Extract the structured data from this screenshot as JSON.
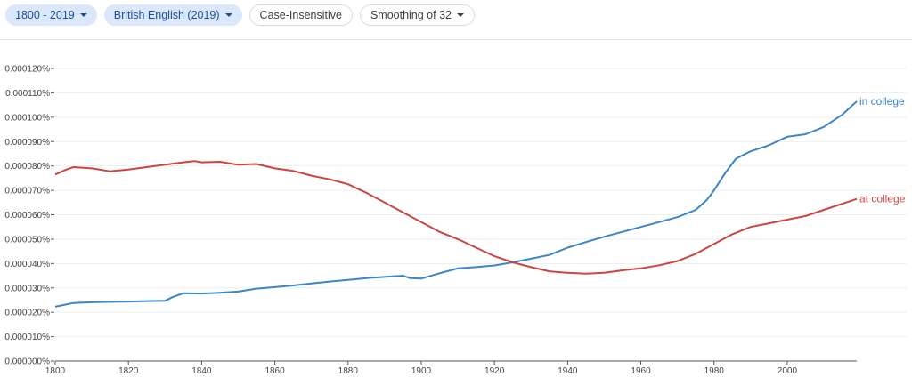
{
  "toolbar": {
    "year_range": "1800 - 2019",
    "corpus": "British English (2019)",
    "case": "Case-Insensitive",
    "smoothing": "Smoothing of 32"
  },
  "colors": {
    "series_1": "#3d85c6",
    "series_2": "#cc4444",
    "grid": "#eeeeee",
    "axis": "#555555"
  },
  "chart_data": {
    "type": "line",
    "xlim": [
      1800,
      2019
    ],
    "ylim": [
      0,
      0.00012
    ],
    "grid": true,
    "legend": "inline-right",
    "x_ticks": [
      "1800",
      "1820",
      "1840",
      "1860",
      "1880",
      "1900",
      "1920",
      "1940",
      "1960",
      "1980",
      "2000"
    ],
    "y_ticks": [
      "0.000000%",
      "0.000010%",
      "0.000020%",
      "0.000030%",
      "0.000040%",
      "0.000050%",
      "0.000060%",
      "0.000070%",
      "0.000080%",
      "0.000090%",
      "0.000100%",
      "0.000110%",
      "0.000120%"
    ],
    "series": [
      {
        "name": "in college",
        "color": "#3d85c6",
        "x": [
          1800,
          1805,
          1810,
          1815,
          1820,
          1825,
          1830,
          1832,
          1835,
          1840,
          1845,
          1850,
          1855,
          1860,
          1865,
          1870,
          1875,
          1880,
          1885,
          1890,
          1895,
          1897,
          1900,
          1905,
          1910,
          1915,
          1920,
          1925,
          1930,
          1935,
          1940,
          1945,
          1950,
          1955,
          1960,
          1965,
          1970,
          1975,
          1978,
          1980,
          1983,
          1986,
          1990,
          1995,
          2000,
          2005,
          2010,
          2015,
          2019
        ],
        "y": [
          2.23e-05,
          2.38e-05,
          2.41e-05,
          2.43e-05,
          2.44e-05,
          2.46e-05,
          2.47e-05,
          2.62e-05,
          2.78e-05,
          2.77e-05,
          2.8e-05,
          2.85e-05,
          2.97e-05,
          3.03e-05,
          3.1e-05,
          3.18e-05,
          3.26e-05,
          3.33e-05,
          3.4e-05,
          3.45e-05,
          3.5e-05,
          3.4e-05,
          3.38e-05,
          3.6e-05,
          3.8e-05,
          3.85e-05,
          3.92e-05,
          4.05e-05,
          4.2e-05,
          4.35e-05,
          4.65e-05,
          4.88e-05,
          5.1e-05,
          5.3e-05,
          5.5e-05,
          5.7e-05,
          5.9e-05,
          6.2e-05,
          6.6e-05,
          7e-05,
          7.7e-05,
          8.3e-05,
          8.6e-05,
          8.85e-05,
          9.2e-05,
          9.3e-05,
          9.6e-05,
          0.000101,
          0.0001065
        ]
      },
      {
        "name": "at college",
        "color": "#cc4444",
        "x": [
          1800,
          1803,
          1805,
          1810,
          1815,
          1820,
          1825,
          1830,
          1835,
          1838,
          1840,
          1845,
          1850,
          1855,
          1860,
          1865,
          1870,
          1875,
          1880,
          1885,
          1890,
          1895,
          1900,
          1905,
          1910,
          1915,
          1920,
          1925,
          1930,
          1935,
          1940,
          1945,
          1950,
          1955,
          1960,
          1965,
          1970,
          1975,
          1980,
          1985,
          1990,
          1995,
          2000,
          2005,
          2010,
          2015,
          2019
        ],
        "y": [
          7.65e-05,
          7.85e-05,
          7.95e-05,
          7.9e-05,
          7.78e-05,
          7.85e-05,
          7.95e-05,
          8.05e-05,
          8.15e-05,
          8.2e-05,
          8.15e-05,
          8.17e-05,
          8.05e-05,
          8.08e-05,
          7.9e-05,
          7.8e-05,
          7.6e-05,
          7.45e-05,
          7.25e-05,
          6.9e-05,
          6.5e-05,
          6.1e-05,
          5.7e-05,
          5.3e-05,
          5e-05,
          4.65e-05,
          4.3e-05,
          4.05e-05,
          3.85e-05,
          3.68e-05,
          3.62e-05,
          3.58e-05,
          3.62e-05,
          3.72e-05,
          3.8e-05,
          3.93e-05,
          4.1e-05,
          4.4e-05,
          4.8e-05,
          5.2e-05,
          5.5e-05,
          5.65e-05,
          5.8e-05,
          5.95e-05,
          6.2e-05,
          6.45e-05,
          6.65e-05
        ]
      }
    ]
  }
}
